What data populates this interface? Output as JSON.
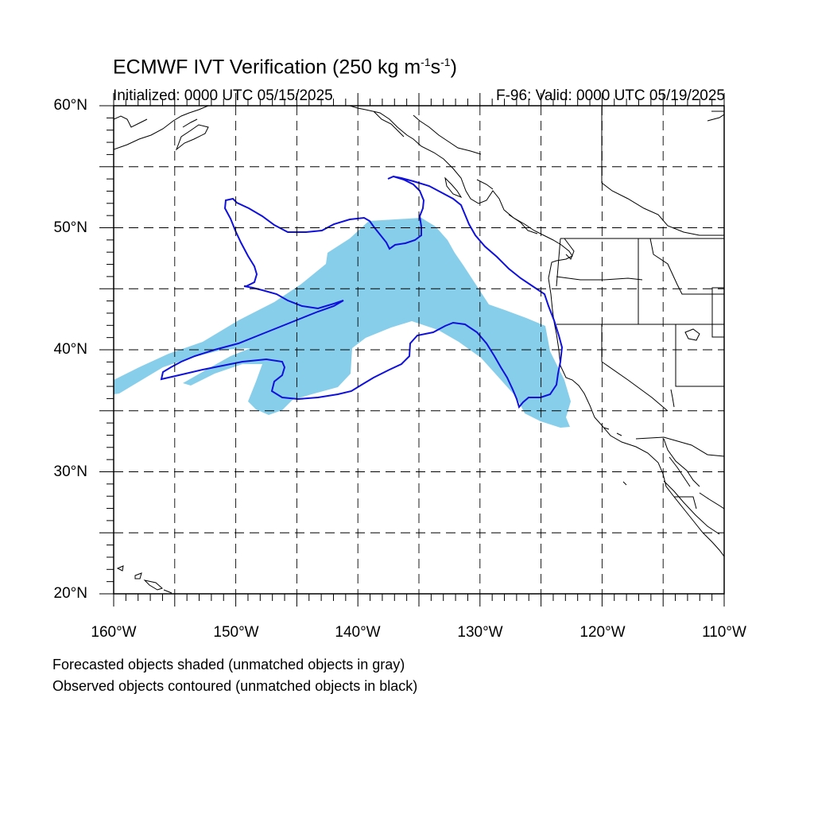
{
  "title": {
    "main": "ECMWF IVT Verification (250 kg m",
    "exp1": "-1",
    "mid": "s",
    "exp2": "-1",
    "end": ")"
  },
  "subtitle_left": "Initialized: 0000 UTC 05/15/2025",
  "subtitle_right": "F-96: Valid: 0000 UTC 05/19/2025",
  "map": {
    "projection": "cylindrical equidistant",
    "lon_range": [
      -160,
      -110
    ],
    "lat_range": [
      20,
      60
    ],
    "grid_spacing_deg": 5,
    "grid_style": "dashed",
    "lat_labels": [
      "20°N",
      "30°N",
      "40°N",
      "50°N",
      "60°N"
    ],
    "lon_labels": [
      "160°W",
      "150°W",
      "140°W",
      "130°W",
      "120°W",
      "110°W"
    ]
  },
  "colors": {
    "forecast_fill": "#87ceeb",
    "observed_contour": "#1010dd",
    "coastline": "#000000"
  },
  "layers": [
    {
      "name": "Forecasted IVT object",
      "style": "shaded"
    },
    {
      "name": "Observed IVT object",
      "style": "contour"
    }
  ],
  "captions": [
    "Forecasted objects shaded (unmatched objects in gray)",
    "Observed objects contoured (unmatched objects in black)"
  ]
}
